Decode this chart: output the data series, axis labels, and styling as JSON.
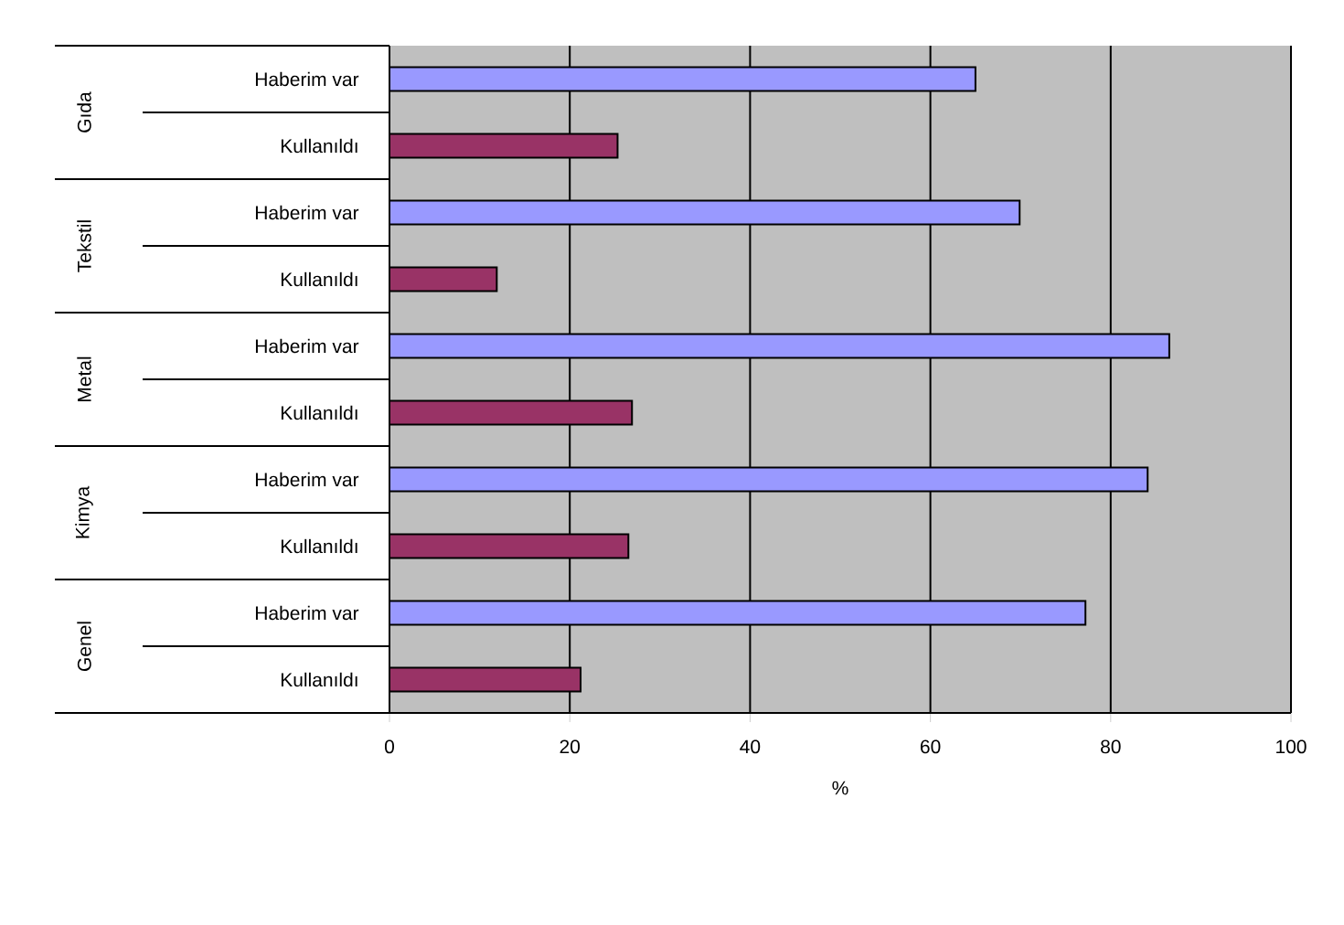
{
  "chart_data": {
    "type": "bar",
    "orientation": "horizontal",
    "categories": [
      "Haberim var",
      "Kullanıldı",
      "Haberim var",
      "Kullanıldı",
      "Haberim var",
      "Kullanıldı",
      "Haberim var",
      "Kullanıldı",
      "Haberim var",
      "Kullanıldı"
    ],
    "values": [
      65.0,
      25.3,
      69.9,
      11.9,
      86.5,
      26.9,
      84.1,
      26.5,
      77.2,
      21.2
    ],
    "colors": [
      "#9999ff",
      "#993366",
      "#9999ff",
      "#993366",
      "#9999ff",
      "#993366",
      "#9999ff",
      "#993366",
      "#9999ff",
      "#993366"
    ],
    "xlim": [
      0,
      100
    ],
    "xticks": [
      0,
      20,
      40,
      60,
      80,
      100
    ],
    "xlabel": "%",
    "grid": "x",
    "annotations": [
      "Gıda",
      "Tekstil",
      "Metal",
      "Kimya",
      "Genel"
    ]
  }
}
